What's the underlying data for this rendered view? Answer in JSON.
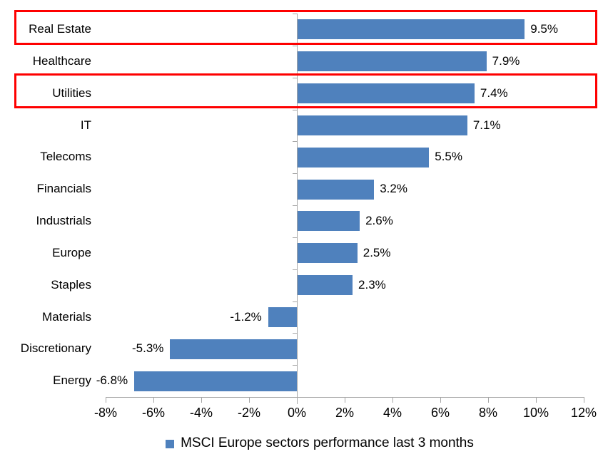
{
  "chart_data": {
    "type": "bar",
    "orientation": "horizontal",
    "legend": "MSCI Europe sectors performance last 3 months",
    "legend_position": "bottom",
    "grid": false,
    "categories": [
      "Real Estate",
      "Healthcare",
      "Utilities",
      "IT",
      "Telecoms",
      "Financials",
      "Industrials",
      "Europe",
      "Staples",
      "Materials",
      "Discretionary",
      "Energy"
    ],
    "values": [
      9.5,
      7.9,
      7.4,
      7.1,
      5.5,
      3.2,
      2.6,
      2.5,
      2.3,
      -1.2,
      -5.3,
      -6.8
    ],
    "data_labels": [
      "9.5%",
      "7.9%",
      "7.4%",
      "7.1%",
      "5.5%",
      "3.2%",
      "2.6%",
      "2.5%",
      "2.3%",
      "-1.2%",
      "-5.3%",
      "-6.8%"
    ],
    "xlim": [
      -8,
      12
    ],
    "x_ticks": [
      {
        "value": -8,
        "label": "-8%"
      },
      {
        "value": -6,
        "label": "-6%"
      },
      {
        "value": -4,
        "label": "-4%"
      },
      {
        "value": -2,
        "label": "-2%"
      },
      {
        "value": 0,
        "label": "0%"
      },
      {
        "value": 2,
        "label": "2%"
      },
      {
        "value": 4,
        "label": "4%"
      },
      {
        "value": 6,
        "label": "6%"
      },
      {
        "value": 8,
        "label": "8%"
      },
      {
        "value": 10,
        "label": "10%"
      },
      {
        "value": 12,
        "label": "12%"
      }
    ],
    "highlighted_categories": [
      "Real Estate",
      "Utilities"
    ],
    "colors": {
      "bar": "#4F81BD",
      "axis": "#A6A6A6",
      "highlight_border": "#FE0000",
      "text": "#000000"
    }
  }
}
